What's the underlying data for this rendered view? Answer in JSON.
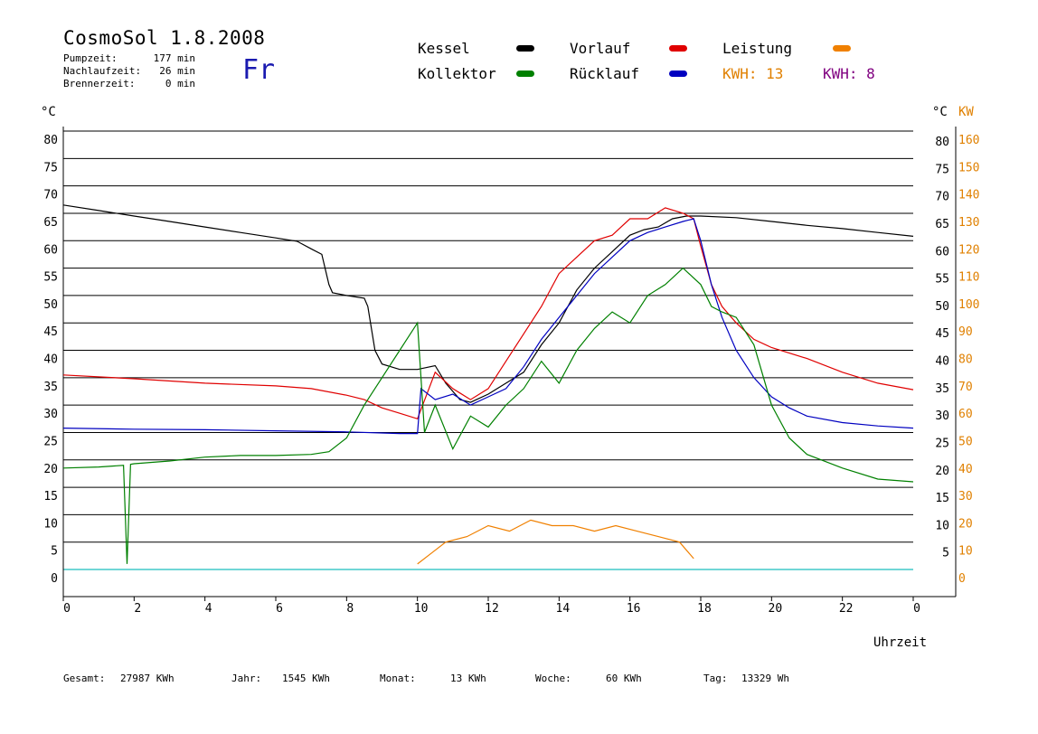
{
  "header": {
    "title": "CosmoSol 1.8.2008",
    "day": "Fr",
    "stats": [
      {
        "label": "Pumpzeit:",
        "value": "177 min"
      },
      {
        "label": "Nachlaufzeit:",
        "value": "26 min"
      },
      {
        "label": "Brennerzeit:",
        "value": "0 min"
      }
    ]
  },
  "legend": {
    "kessel": "Kessel",
    "kollektor": "Kollektor",
    "vorlauf": "Vorlauf",
    "ruecklauf": "Rücklauf",
    "leistung": "Leistung",
    "kwh1": "KWH: 13",
    "kwh2": "KWH: 8"
  },
  "footer": {
    "gesamt_label": "Gesamt:",
    "gesamt_value": "27987 KWh",
    "jahr_label": "Jahr:",
    "jahr_value": "1545 KWh",
    "monat_label": "Monat:",
    "monat_value": "13 KWh",
    "woche_label": "Woche:",
    "woche_value": "60 KWh",
    "tag_label": "Tag:",
    "tag_value": "13329 Wh"
  },
  "chart_data": {
    "type": "line",
    "xlabel": "Uhrzeit",
    "ylabel_left": "°C",
    "ylabel_right_temp": "°C",
    "ylabel_right_power": "KW",
    "xlim": [
      0,
      24
    ],
    "ylim": [
      0,
      80
    ],
    "grid": true,
    "x_ticks": [
      "0",
      "2",
      "4",
      "6",
      "8",
      "10",
      "12",
      "14",
      "16",
      "18",
      "20",
      "22",
      "0"
    ],
    "y_ticks_left": [
      "0",
      "5",
      "10",
      "15",
      "20",
      "25",
      "30",
      "35",
      "40",
      "45",
      "50",
      "55",
      "60",
      "65",
      "70",
      "75",
      "80"
    ],
    "y_ticks_right": [
      "5",
      "10",
      "15",
      "20",
      "25",
      "30",
      "35",
      "40",
      "45",
      "50",
      "55",
      "60",
      "65",
      "70",
      "75",
      "80"
    ],
    "y_ticks_power": [
      "0",
      "10",
      "20",
      "30",
      "40",
      "50",
      "60",
      "70",
      "80",
      "90",
      "100",
      "110",
      "120",
      "130",
      "140",
      "150",
      "160"
    ],
    "colors": {
      "kessel": "#000000",
      "kollektor": "#008000",
      "vorlauf": "#e00000",
      "ruecklauf": "#0000c0",
      "leistung": "#f08000",
      "kwh2": "#800080",
      "baseline": "#40c8c8",
      "axis_power": "#e08000"
    },
    "series": [
      {
        "name": "Kessel",
        "x": [
          0,
          1,
          2,
          3,
          4,
          5,
          6,
          6.6,
          7.0,
          7.3,
          7.5,
          7.6,
          8.0,
          8.5,
          8.6,
          8.8,
          9.0,
          9.5,
          10.0,
          10.5,
          10.8,
          11.2,
          11.5,
          12.0,
          12.5,
          13.0,
          13.5,
          14.0,
          14.5,
          15.0,
          15.5,
          16.0,
          16.4,
          16.8,
          17.2,
          17.6,
          18.0,
          19.0,
          20.0,
          21.0,
          22.0,
          23.0,
          24.0
        ],
        "values": [
          66.5,
          65.5,
          64.5,
          63.5,
          62.5,
          61.5,
          60.5,
          59.9,
          58.5,
          57.5,
          52,
          50.5,
          50,
          49.5,
          48,
          40,
          37.5,
          36.5,
          36.5,
          37.2,
          34,
          31,
          30.5,
          32,
          34,
          36,
          41,
          45,
          51,
          55,
          58,
          61,
          62,
          62.5,
          64,
          64.5,
          64.5,
          64.2,
          63.5,
          62.8,
          62.2,
          61.5,
          60.8
        ]
      },
      {
        "name": "Vorlauf",
        "x": [
          0,
          2,
          4,
          6,
          7,
          8,
          8.5,
          9,
          9.5,
          10,
          10.5,
          11,
          11.5,
          12,
          12.5,
          13,
          13.5,
          14,
          14.5,
          15,
          15.5,
          16,
          16.5,
          17,
          17.5,
          17.8,
          18,
          18.3,
          18.6,
          19,
          19.5,
          20,
          21,
          22,
          23,
          24
        ],
        "values": [
          35.5,
          34.8,
          34,
          33.5,
          33,
          31.8,
          31,
          29.5,
          28.5,
          27.5,
          36,
          33,
          31,
          33,
          38,
          43,
          48,
          54,
          57,
          60,
          61,
          64,
          64,
          66,
          65,
          64,
          59,
          52,
          48,
          45,
          42,
          40.5,
          38.5,
          36,
          34,
          32.8
        ]
      },
      {
        "name": "Rücklauf",
        "x": [
          0,
          2,
          4,
          6,
          8,
          9,
          9.5,
          10,
          10.1,
          10.5,
          11,
          11.5,
          12,
          12.5,
          13,
          13.5,
          14,
          14.5,
          15,
          15.5,
          16,
          16.5,
          17,
          17.5,
          17.8,
          18,
          18.3,
          18.6,
          19,
          19.5,
          20,
          20.5,
          21,
          22,
          23,
          24
        ],
        "values": [
          25.8,
          25.6,
          25.5,
          25.3,
          25.1,
          24.9,
          24.8,
          24.8,
          33,
          31,
          32,
          30,
          31.5,
          33,
          37,
          42,
          46,
          50,
          54,
          57,
          60,
          61.5,
          62.5,
          63.5,
          64,
          60,
          52,
          46,
          40,
          35,
          31.5,
          29.5,
          28,
          26.8,
          26.2,
          25.8
        ]
      },
      {
        "name": "Kollektor",
        "x": [
          0,
          1,
          1.7,
          1.8,
          1.9,
          2,
          3,
          4,
          5,
          6,
          7,
          7.5,
          8,
          8.5,
          9,
          9.5,
          10,
          10.2,
          10.5,
          11,
          11.5,
          12,
          12.5,
          13,
          13.5,
          14,
          14.5,
          15,
          15.5,
          16,
          16.5,
          17,
          17.5,
          18,
          18.3,
          18.6,
          19,
          19.5,
          20,
          20.5,
          21,
          22,
          23,
          24
        ],
        "values": [
          18.5,
          18.7,
          19,
          1,
          19.2,
          19.3,
          19.8,
          20.5,
          20.8,
          20.8,
          21,
          21.5,
          24,
          30,
          35,
          40,
          45,
          25,
          30,
          22,
          28,
          26,
          30,
          33,
          38,
          34,
          40,
          44,
          47,
          45,
          50,
          52,
          55,
          52,
          48,
          47,
          46,
          41,
          30,
          24,
          21,
          18.5,
          16.5,
          16
        ]
      },
      {
        "name": "Leistung",
        "x": [
          10,
          10.4,
          10.8,
          11.4,
          12,
          12.6,
          13.2,
          13.8,
          14.4,
          15,
          15.6,
          16.2,
          16.8,
          17.4,
          17.8
        ],
        "values": [
          1,
          3,
          5,
          6,
          8,
          7,
          9,
          8,
          8,
          7,
          8,
          7,
          6,
          5,
          2
        ]
      }
    ]
  }
}
